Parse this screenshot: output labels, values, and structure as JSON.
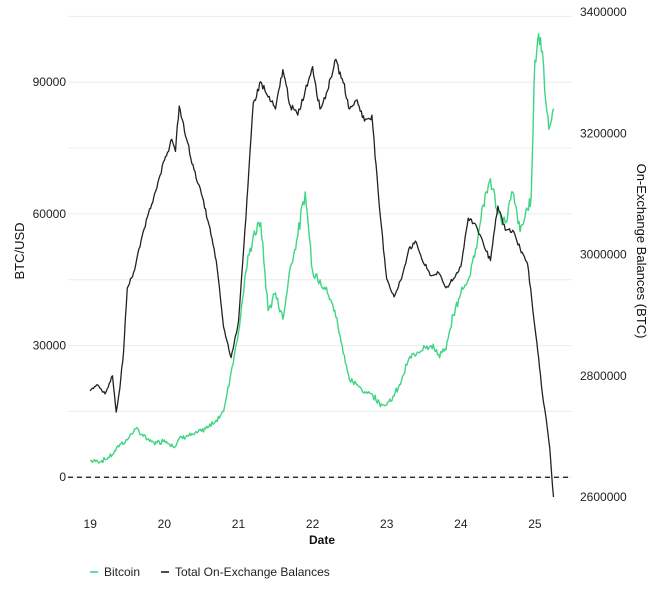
{
  "chart_data": {
    "type": "line",
    "xlabel": "Date",
    "ylabel_left": "BTC/USD",
    "ylabel_right": "On-Exchange Balances (BTC)",
    "x_ticks": [
      "19",
      "20",
      "21",
      "22",
      "23",
      "24",
      "25"
    ],
    "x_tick_values": [
      19,
      20,
      21,
      22,
      23,
      24,
      25
    ],
    "xlim": [
      18.7,
      25.5
    ],
    "y_left_ticks": [
      0,
      30000,
      60000,
      90000
    ],
    "y_left_tick_labels": [
      "0",
      "30000",
      "60000",
      "90000"
    ],
    "ylim_left": [
      -4500,
      106000
    ],
    "y_right_ticks": [
      2600000,
      2800000,
      3000000,
      3200000,
      3400000
    ],
    "y_right_tick_labels": [
      "2600000",
      "2800000",
      "3000000",
      "3200000",
      "3400000"
    ],
    "ylim_right": [
      2600000,
      3400000
    ],
    "grid": true,
    "zero_line": "dashed",
    "legend_position": "bottom-left",
    "series": [
      {
        "name": "Bitcoin",
        "axis": "left",
        "color": "#3ed584",
        "x": [
          19.0,
          19.1,
          19.2,
          19.3,
          19.4,
          19.5,
          19.6,
          19.7,
          19.8,
          19.9,
          20.0,
          20.1,
          20.15,
          20.2,
          20.3,
          20.4,
          20.5,
          20.6,
          20.7,
          20.8,
          20.9,
          21.0,
          21.1,
          21.2,
          21.3,
          21.4,
          21.5,
          21.6,
          21.7,
          21.8,
          21.9,
          22.0,
          22.1,
          22.2,
          22.3,
          22.4,
          22.5,
          22.6,
          22.7,
          22.8,
          22.9,
          23.0,
          23.1,
          23.2,
          23.3,
          23.4,
          23.5,
          23.6,
          23.7,
          23.8,
          23.9,
          24.0,
          24.1,
          24.2,
          24.3,
          24.4,
          24.5,
          24.6,
          24.7,
          24.8,
          24.9,
          24.95,
          25.0,
          25.05,
          25.1,
          25.15,
          25.2,
          25.25
        ],
        "y": [
          3800,
          3600,
          4000,
          5200,
          7500,
          8500,
          11000,
          9800,
          8200,
          7800,
          8500,
          7500,
          7000,
          8800,
          9500,
          9700,
          10500,
          11500,
          13000,
          15000,
          24000,
          33000,
          47000,
          55000,
          58000,
          38000,
          42000,
          36000,
          48000,
          55000,
          65000,
          47000,
          45000,
          42000,
          38000,
          30000,
          22000,
          21000,
          19500,
          19000,
          17000,
          16500,
          18500,
          22000,
          27000,
          28000,
          30000,
          30000,
          28000,
          29000,
          37000,
          42000,
          45000,
          52000,
          62000,
          68000,
          60000,
          58000,
          65000,
          56000,
          61000,
          64000,
          95000,
          101000,
          97000,
          85000,
          80000,
          84000
        ]
      },
      {
        "name": "Total On-Exchange Balances",
        "axis": "right",
        "color": "#222222",
        "x": [
          19.0,
          19.1,
          19.2,
          19.3,
          19.35,
          19.4,
          19.45,
          19.5,
          19.6,
          19.7,
          19.8,
          19.9,
          20.0,
          20.1,
          20.15,
          20.2,
          20.3,
          20.4,
          20.5,
          20.6,
          20.7,
          20.8,
          20.9,
          21.0,
          21.1,
          21.2,
          21.3,
          21.4,
          21.5,
          21.6,
          21.7,
          21.8,
          21.9,
          22.0,
          22.1,
          22.2,
          22.3,
          22.4,
          22.5,
          22.6,
          22.7,
          22.8,
          22.9,
          23.0,
          23.1,
          23.2,
          23.3,
          23.4,
          23.5,
          23.6,
          23.7,
          23.8,
          23.9,
          24.0,
          24.1,
          24.2,
          24.3,
          24.4,
          24.5,
          24.6,
          24.7,
          24.8,
          24.9,
          25.0,
          25.05,
          25.1,
          25.15,
          25.2,
          25.25
        ],
        "y": [
          2775000,
          2785000,
          2770000,
          2800000,
          2740000,
          2780000,
          2840000,
          2945000,
          2975000,
          3030000,
          3075000,
          3110000,
          3155000,
          3190000,
          3170000,
          3245000,
          3190000,
          3140000,
          3100000,
          3050000,
          2990000,
          2880000,
          2830000,
          2890000,
          3060000,
          3250000,
          3285000,
          3260000,
          3240000,
          3305000,
          3245000,
          3230000,
          3270000,
          3310000,
          3240000,
          3270000,
          3320000,
          3290000,
          3240000,
          3255000,
          3220000,
          3230000,
          3080000,
          2960000,
          2930000,
          2960000,
          3010000,
          3020000,
          2985000,
          2965000,
          2970000,
          2945000,
          2960000,
          2980000,
          3060000,
          3050000,
          3020000,
          2990000,
          3080000,
          3040000,
          3040000,
          3010000,
          2985000,
          2880000,
          2830000,
          2770000,
          2730000,
          2680000,
          2600000
        ]
      }
    ]
  }
}
